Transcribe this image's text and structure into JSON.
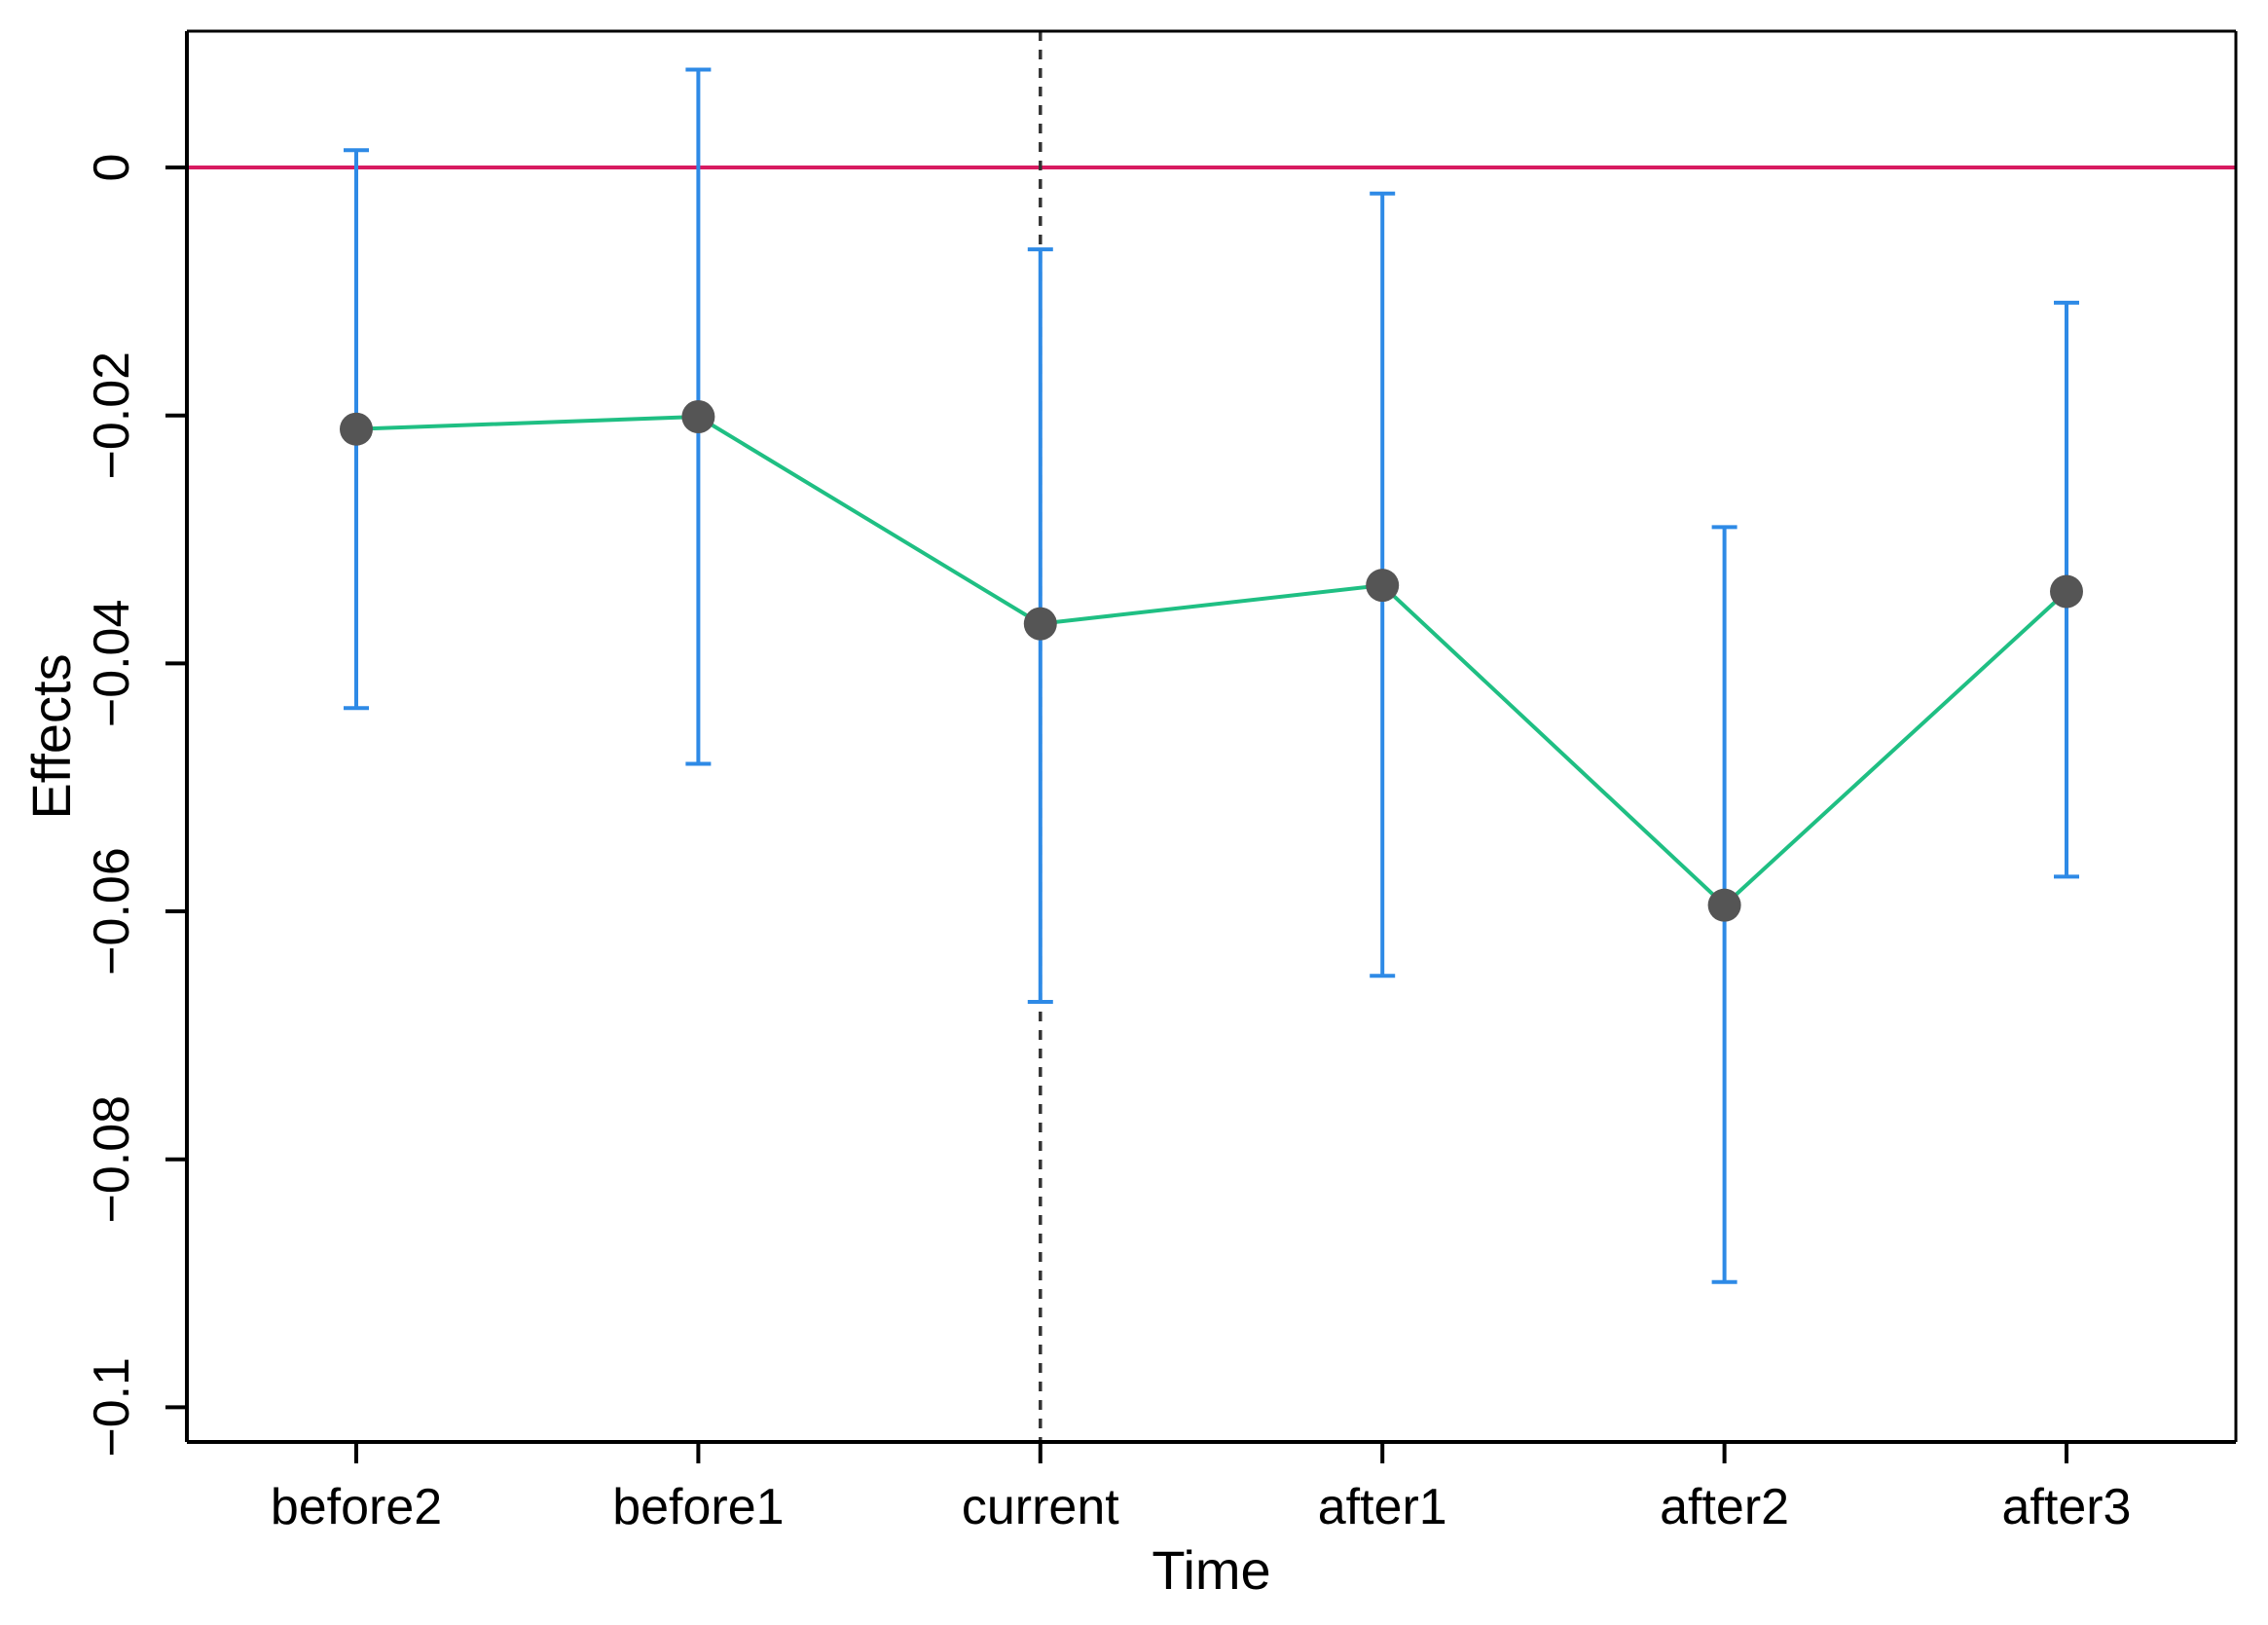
{
  "chart_data": {
    "type": "line",
    "title": "",
    "xlabel": "Time",
    "ylabel": "Effects",
    "categories": [
      "before2",
      "before1",
      "current",
      "after1",
      "after2",
      "after3"
    ],
    "series": [
      {
        "values": [
          -0.0211,
          -0.0201,
          -0.0368,
          -0.0337,
          -0.0595,
          -0.0342
        ],
        "ci_lower": [
          -0.0436,
          -0.0481,
          -0.0673,
          -0.0652,
          -0.0899,
          -0.0572
        ],
        "ci_upper": [
          0.0014,
          0.0079,
          -0.0066,
          -0.0021,
          -0.029,
          -0.0109
        ]
      }
    ],
    "ylim": [
      -0.1028,
      0.011
    ],
    "yticks": [
      0,
      -0.02,
      -0.04,
      -0.06,
      -0.08,
      -0.1
    ],
    "ytick_labels": [
      "0",
      "−0.02",
      "−0.04",
      "−0.06",
      "−0.08",
      "−0.1"
    ],
    "reference_line_y": 0,
    "event_marker_category": "current",
    "grid": false,
    "colors": {
      "line": "#1fbf83",
      "points": "#555555",
      "error_bars": "#2e8ae6",
      "reference_line": "#d81b60",
      "event_line": "#333333",
      "axes": "#000000"
    }
  }
}
